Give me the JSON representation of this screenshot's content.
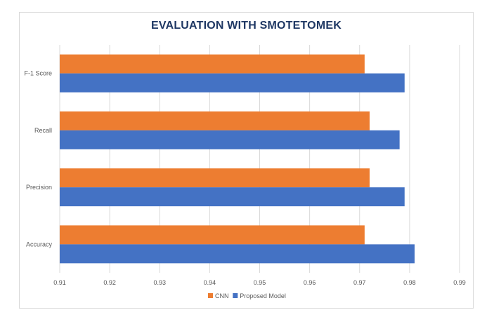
{
  "chart_data": {
    "type": "bar",
    "orientation": "horizontal",
    "title": "EVALUATION WITH SMOTETOMEK",
    "categories": [
      "F-1 Score",
      "Recall",
      "Precision",
      "Accuracy"
    ],
    "series": [
      {
        "name": "CNN",
        "color": "#ed7d31",
        "values": [
          0.971,
          0.972,
          0.972,
          0.971
        ]
      },
      {
        "name": "Proposed Model",
        "color": "#4472c4",
        "values": [
          0.979,
          0.978,
          0.979,
          0.981
        ]
      }
    ],
    "xlim": [
      0.91,
      0.99
    ],
    "xticks": [
      0.91,
      0.92,
      0.93,
      0.94,
      0.95,
      0.96,
      0.97,
      0.98,
      0.99
    ],
    "xtick_labels": [
      "0.91",
      "0.92",
      "0.93",
      "0.94",
      "0.95",
      "0.96",
      "0.97",
      "0.98",
      "0.99"
    ],
    "grid": "vertical",
    "legend_position": "bottom",
    "xlabel": "",
    "ylabel": ""
  }
}
